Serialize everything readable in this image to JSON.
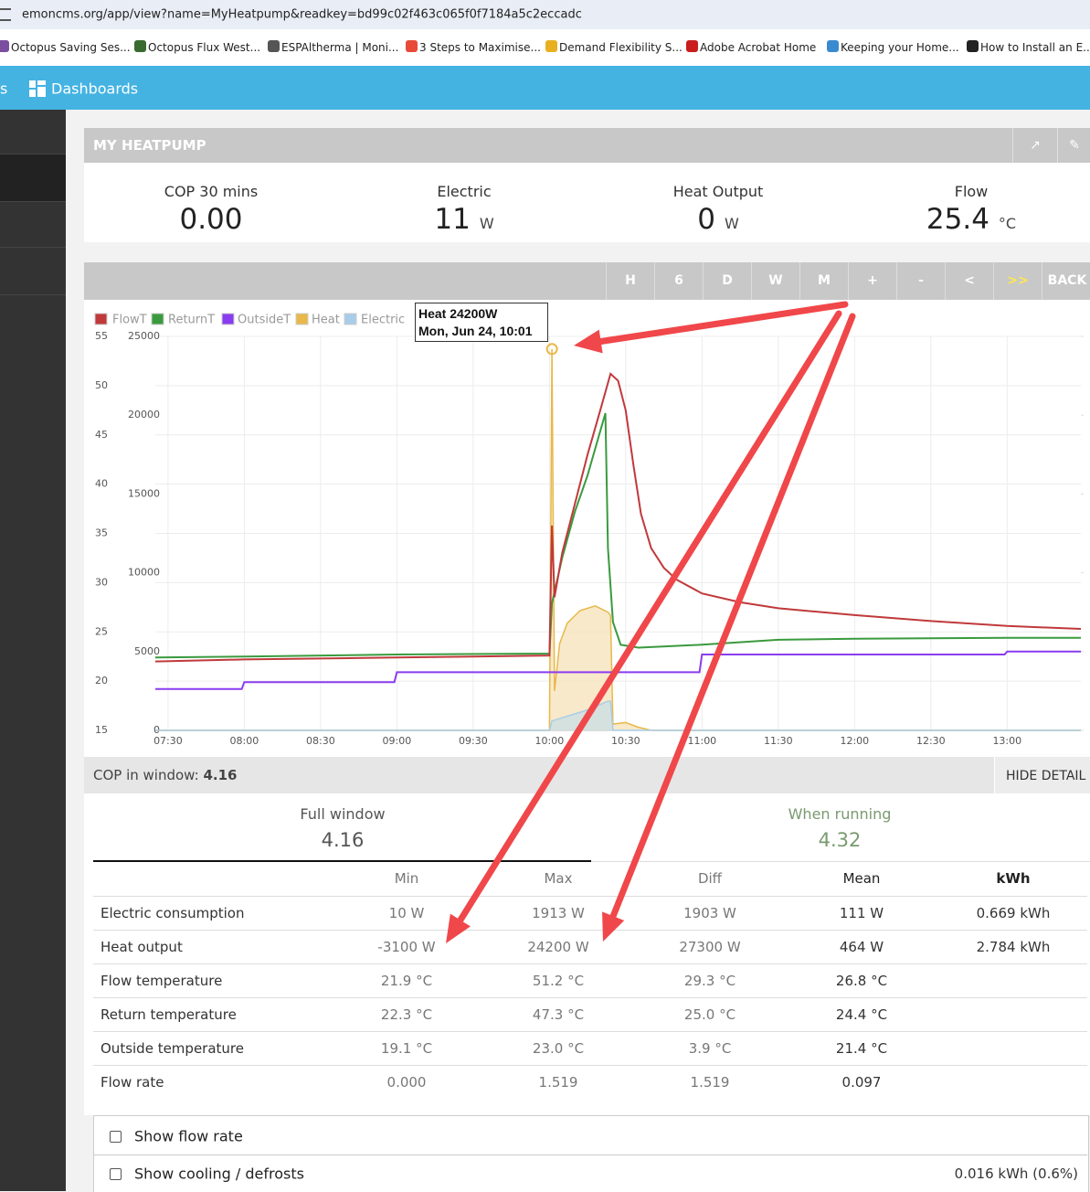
{
  "browser": {
    "url": "emoncms.org/app/view?name=MyHeatpump&readkey=bd99c02f463c065f0f7184a5c2eccadc",
    "bookmarks": [
      "Octopus Saving Ses...",
      "Octopus Flux West...",
      "ESPAltherma | Moni...",
      "3 Steps to Maximise...",
      "Demand Flexibility S...",
      "Adobe Acrobat Home",
      "Keeping your Home...",
      "How to Install an E..."
    ]
  },
  "nav": {
    "partial": "s",
    "dashboards": "Dashboards"
  },
  "panel": {
    "title": "MY HEATPUMP",
    "stats": [
      {
        "label": "COP 30 mins",
        "value": "0.00"
      },
      {
        "label": "Electric",
        "value": "11",
        "unit": "W"
      },
      {
        "label": "Heat Output",
        "value": "0",
        "unit": "W"
      },
      {
        "label": "Flow",
        "value": "25.4",
        "unit": "°C"
      }
    ],
    "controls": [
      "H",
      "6",
      "D",
      "W",
      "M",
      "+",
      "-",
      "<",
      ">>",
      "BACK"
    ]
  },
  "chart_data": {
    "type": "line",
    "grid": true,
    "xlim": [
      "07:25",
      "13:29"
    ],
    "xticks": [
      "07:30",
      "08:00",
      "08:30",
      "09:00",
      "09:30",
      "10:00",
      "10:30",
      "11:00",
      "11:30",
      "12:00",
      "12:30",
      "13:00"
    ],
    "ylim": [
      15,
      55
    ],
    "yticks": [
      15,
      20,
      25,
      30,
      35,
      40,
      45,
      50,
      55
    ],
    "y2lim": [
      0,
      25000
    ],
    "y2ticks": [
      0,
      5000,
      10000,
      15000,
      20000,
      25000
    ],
    "series": [
      {
        "name": "FlowT",
        "color": "#c0393b",
        "x": [
          "07:25",
          "08:00",
          "09:00",
          "10:00",
          "10:01",
          "10:02",
          "10:05",
          "10:10",
          "10:15",
          "10:20",
          "10:24",
          "10:27",
          "10:30",
          "10:33",
          "10:36",
          "10:40",
          "10:45",
          "10:50",
          "11:00",
          "11:15",
          "11:30",
          "12:00",
          "12:30",
          "13:00",
          "13:29"
        ],
        "values": [
          22.0,
          22.2,
          22.4,
          22.6,
          35.8,
          28.5,
          33,
          38,
          43,
          47.5,
          51.2,
          50.5,
          47.5,
          42,
          37,
          33.5,
          31.5,
          30.3,
          28.9,
          28,
          27.4,
          26.7,
          26.1,
          25.6,
          25.3
        ]
      },
      {
        "name": "ReturnT",
        "color": "#3a9a3e",
        "x": [
          "07:25",
          "08:00",
          "09:00",
          "10:00",
          "10:01",
          "10:05",
          "10:10",
          "10:15",
          "10:22",
          "10:23",
          "10:25",
          "10:28",
          "10:35",
          "11:00",
          "11:30",
          "12:00",
          "13:00",
          "13:29"
        ],
        "values": [
          22.4,
          22.5,
          22.7,
          22.8,
          27.9,
          32.5,
          37.2,
          40.9,
          47.2,
          33.5,
          26,
          23.7,
          23.4,
          23.7,
          24.2,
          24.3,
          24.4,
          24.4
        ]
      },
      {
        "name": "OutsideT",
        "color": "#8a3cf0",
        "x": [
          "07:25",
          "07:59",
          "08:00",
          "08:59",
          "09:00",
          "10:59",
          "11:00",
          "12:59",
          "13:00",
          "13:29"
        ],
        "values": [
          19.2,
          19.2,
          19.9,
          19.9,
          20.9,
          20.9,
          22.7,
          22.7,
          23.0,
          23.0
        ]
      },
      {
        "name": "Heat",
        "color": "#e8b84a",
        "fill": "#f5e2b8",
        "area": true,
        "axis": "y2",
        "x": [
          "07:25",
          "10:00",
          "10:01",
          "10:02",
          "10:04",
          "10:07",
          "10:12",
          "10:18",
          "10:23",
          "10:24",
          "10:25",
          "10:30",
          "10:35",
          "10:40",
          "13:29"
        ],
        "values": [
          0,
          0,
          24200,
          2500,
          5500,
          6800,
          7600,
          7900,
          7500,
          7300,
          400,
          500,
          200,
          0,
          0
        ]
      },
      {
        "name": "Electric",
        "color": "#a8cde8",
        "fill": "#c9dde6",
        "area": true,
        "axis": "y2",
        "x": [
          "07:25",
          "10:00",
          "10:01",
          "10:05",
          "10:15",
          "10:23",
          "10:24",
          "10:25",
          "13:29"
        ],
        "values": [
          0,
          0,
          600,
          800,
          1300,
          1850,
          1850,
          0,
          0
        ]
      }
    ],
    "tooltip": {
      "title": "Heat 24200W",
      "subtitle": "Mon, Jun 24, 10:01"
    }
  },
  "summary": {
    "cop_label": "COP in window:",
    "cop_value": "4.16",
    "hide": "HIDE DETAIL",
    "full_window": {
      "label": "Full window",
      "value": "4.16"
    },
    "when_running": {
      "label": "When running",
      "value": "4.32"
    }
  },
  "table": {
    "header": [
      "Min",
      "Max",
      "Diff",
      "Mean",
      "kWh"
    ],
    "rows": [
      [
        "Electric consumption",
        "10 W",
        "1913 W",
        "1903 W",
        "111 W",
        "0.669 kWh"
      ],
      [
        "Heat output",
        "-3100 W",
        "24200 W",
        "27300 W",
        "464 W",
        "2.784 kWh"
      ],
      [
        "Flow temperature",
        "21.9 °C",
        "51.2 °C",
        "29.3 °C",
        "26.8 °C"
      ],
      [
        "Return temperature",
        "22.3 °C",
        "47.3 °C",
        "25.0 °C",
        "24.4 °C"
      ],
      [
        "Outside temperature",
        "19.1 °C",
        "23.0 °C",
        "3.9 °C",
        "21.4 °C"
      ],
      [
        "Flow rate",
        "0.000",
        "1.519",
        "1.519",
        "0.097"
      ]
    ]
  },
  "options": [
    {
      "label": "Show flow rate"
    },
    {
      "label": "Show cooling / defrosts",
      "value": "0.016 kWh (0.6%)"
    }
  ]
}
